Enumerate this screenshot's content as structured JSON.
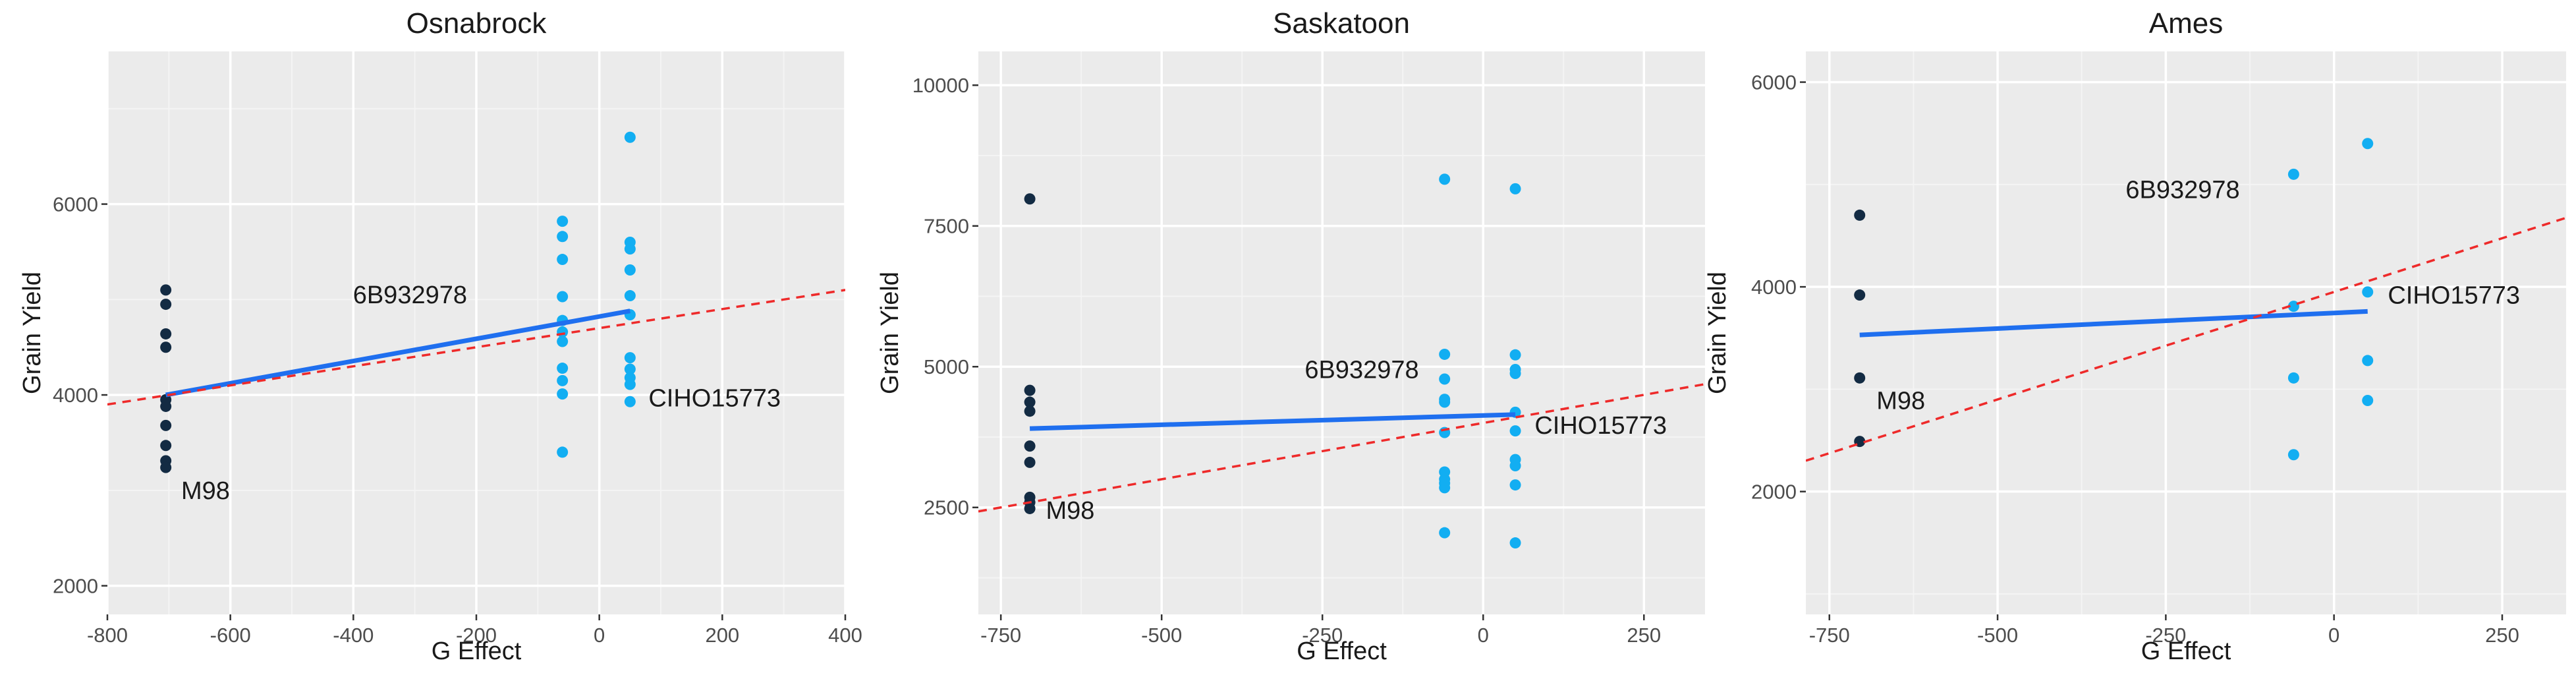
{
  "colors": {
    "panel_bg": "#ebebeb",
    "grid_major": "#ffffff",
    "grid_minor": "#f4f4f4",
    "dark_point": "#132b43",
    "light_point": "#12aef2",
    "fit_line": "#1f6fef",
    "dashed_line": "#ee2a2a"
  },
  "chart_data": [
    {
      "type": "scatter",
      "title": "Osnabrock",
      "xlabel": "G Effect",
      "ylabel": "Grain Yield",
      "xlim": [
        -800,
        400
      ],
      "ylim": [
        1700,
        7600
      ],
      "x_ticks": [
        -800,
        -600,
        -400,
        -200,
        0,
        200,
        400
      ],
      "x_tick_labels": [
        "-800",
        "-600",
        "-400",
        "-200",
        "0",
        "200",
        "400"
      ],
      "y_ticks": [
        2000,
        4000,
        6000
      ],
      "y_tick_labels": [
        "2000",
        "4000",
        "6000"
      ],
      "series": [
        {
          "name": "M98",
          "color": "dark",
          "x": -705,
          "y": [
            5100,
            4950,
            4640,
            4500,
            3950,
            3880,
            3680,
            3470,
            3310,
            3240
          ]
        },
        {
          "name": "6B932978",
          "color": "light",
          "x": -60,
          "y": [
            5820,
            5660,
            5420,
            5030,
            4780,
            4660,
            4560,
            4280,
            4150,
            4010,
            3400
          ]
        },
        {
          "name": "CIHO15773",
          "color": "light",
          "x": 50,
          "y": [
            6700,
            5600,
            5530,
            5310,
            5040,
            4840,
            4390,
            4270,
            4180,
            4110,
            3930
          ]
        }
      ],
      "fit_line": {
        "x": [
          -705,
          50
        ],
        "y": [
          4000,
          4880
        ]
      },
      "dashed_line": {
        "slope": 1.0,
        "intercept": 4700
      },
      "annotations": [
        {
          "text": "6B932978",
          "x": -215,
          "y": 5050,
          "anchor": "end"
        },
        {
          "text": "CIHO15773",
          "x": 80,
          "y": 3970,
          "anchor": "start"
        },
        {
          "text": "M98",
          "x": -680,
          "y": 3000,
          "anchor": "start"
        }
      ]
    },
    {
      "type": "scatter",
      "title": "Saskatoon",
      "xlabel": "G Effect",
      "ylabel": "Grain Yield",
      "xlim": [
        -785,
        345
      ],
      "ylim": [
        600,
        10600
      ],
      "x_ticks": [
        -750,
        -500,
        -250,
        0,
        250
      ],
      "x_tick_labels": [
        "-750",
        "-500",
        "-250",
        "0",
        "250"
      ],
      "y_ticks": [
        2500,
        5000,
        7500,
        10000
      ],
      "y_tick_labels": [
        "2500",
        "5000",
        "7500",
        "10000"
      ],
      "series": [
        {
          "name": "M98",
          "color": "dark",
          "x": -705,
          "y": [
            7980,
            4580,
            4370,
            4210,
            3590,
            3300,
            2680,
            2590,
            2480
          ]
        },
        {
          "name": "6B932978",
          "color": "light",
          "x": -60,
          "y": [
            8330,
            5220,
            4780,
            4420,
            4370,
            3830,
            3130,
            3000,
            2930,
            2850,
            2050
          ]
        },
        {
          "name": "CIHO15773",
          "color": "light",
          "x": 50,
          "y": [
            8160,
            5210,
            4950,
            4880,
            4190,
            3860,
            3350,
            3240,
            2900,
            1870
          ]
        }
      ],
      "fit_line": {
        "x": [
          -705,
          50
        ],
        "y": [
          3900,
          4150
        ]
      },
      "dashed_line": {
        "slope": 2.0,
        "intercept": 4000
      },
      "annotations": [
        {
          "text": "6B932978",
          "x": -100,
          "y": 4950,
          "anchor": "end"
        },
        {
          "text": "CIHO15773",
          "x": 80,
          "y": 3960,
          "anchor": "start"
        },
        {
          "text": "M98",
          "x": -680,
          "y": 2450,
          "anchor": "start"
        }
      ]
    },
    {
      "type": "scatter",
      "title": "Ames",
      "xlabel": "G Effect",
      "ylabel": "Grain Yield",
      "xlim": [
        -785,
        345
      ],
      "ylim": [
        800,
        6300
      ],
      "x_ticks": [
        -750,
        -500,
        -250,
        0,
        250
      ],
      "x_tick_labels": [
        "-750",
        "-500",
        "-250",
        "0",
        "250"
      ],
      "y_ticks": [
        2000,
        4000,
        6000
      ],
      "y_tick_labels": [
        "2000",
        "4000",
        "6000"
      ],
      "series": [
        {
          "name": "M98",
          "color": "dark",
          "x": -705,
          "y": [
            4700,
            3920,
            3110,
            2490
          ]
        },
        {
          "name": "6B932978",
          "color": "light",
          "x": -60,
          "y": [
            5100,
            3810,
            3110,
            2360
          ]
        },
        {
          "name": "CIHO15773",
          "color": "light",
          "x": 50,
          "y": [
            5400,
            3950,
            3280,
            2890
          ]
        }
      ],
      "fit_line": {
        "x": [
          -705,
          50
        ],
        "y": [
          3530,
          3760
        ]
      },
      "dashed_line": {
        "slope": 2.1,
        "intercept": 3950
      },
      "annotations": [
        {
          "text": "6B932978",
          "x": -140,
          "y": 4950,
          "anchor": "end"
        },
        {
          "text": "CIHO15773",
          "x": 80,
          "y": 3920,
          "anchor": "start"
        },
        {
          "text": "M98",
          "x": -680,
          "y": 2890,
          "anchor": "start"
        }
      ]
    }
  ]
}
